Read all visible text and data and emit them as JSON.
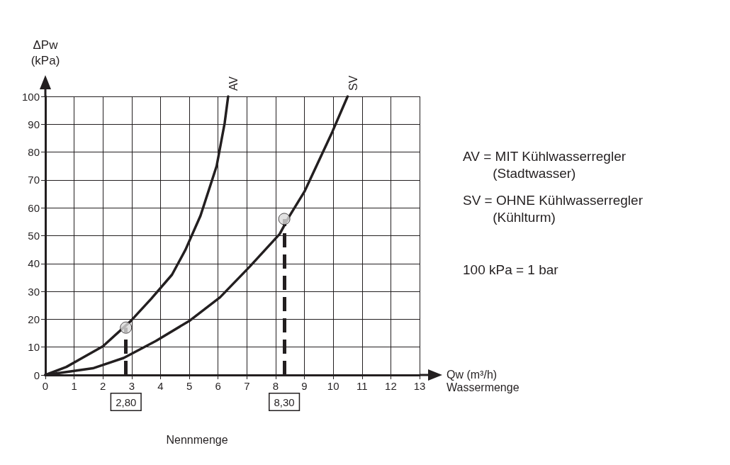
{
  "chart_data": {
    "type": "line",
    "xlabel": "Qw (m³/h)\nWassermenge",
    "ylabel": "ΔPw\n(kPa)",
    "xlim": [
      0,
      13
    ],
    "ylim": [
      0,
      100
    ],
    "xticks": [
      0,
      1,
      2,
      3,
      4,
      5,
      6,
      7,
      8,
      9,
      10,
      11,
      12,
      13
    ],
    "yticks": [
      0,
      10,
      20,
      30,
      40,
      50,
      60,
      70,
      80,
      90,
      100
    ],
    "grid": true,
    "legend": false,
    "marker": "none",
    "line_style": "solid",
    "series": [
      {
        "name": "AV",
        "color": "#231f20",
        "x": [
          0,
          0.73,
          2.0,
          2.96,
          3.68,
          4.4,
          4.87,
          5.39,
          5.95,
          6.23,
          6.35
        ],
        "values": [
          0,
          2.9,
          10.3,
          19.3,
          27.4,
          36,
          45,
          57.2,
          75,
          90.5,
          100
        ]
      },
      {
        "name": "SV",
        "color": "#231f20",
        "x": [
          0,
          1.65,
          2.72,
          3.84,
          5.03,
          6.07,
          7.1,
          8.14,
          8.46,
          9.01,
          9.97,
          10.5
        ],
        "values": [
          0,
          2.4,
          6.1,
          12.2,
          19.6,
          27.9,
          38.9,
          50.6,
          56.7,
          66,
          87.3,
          100
        ]
      },
      {
        "type": "scatter",
        "marker": "circle",
        "color": "#d9d9d9",
        "x": [
          2.8,
          8.3
        ],
        "values": [
          17,
          56
        ]
      }
    ],
    "ref_lines": [
      {
        "axis": "x",
        "value": 2.8,
        "label": "2,80",
        "line_style": "dashed"
      },
      {
        "axis": "x",
        "value": 8.3,
        "label": "8,30",
        "line_style": "dashed"
      }
    ],
    "annotations": [
      "AV = MIT Kühlwasserregler\n        (Stadtwasser)",
      "SV = OHNE Kühlwasserregler\n        (Kühlturm)",
      "100 kPa = 1 bar",
      "Nennmenge"
    ]
  }
}
